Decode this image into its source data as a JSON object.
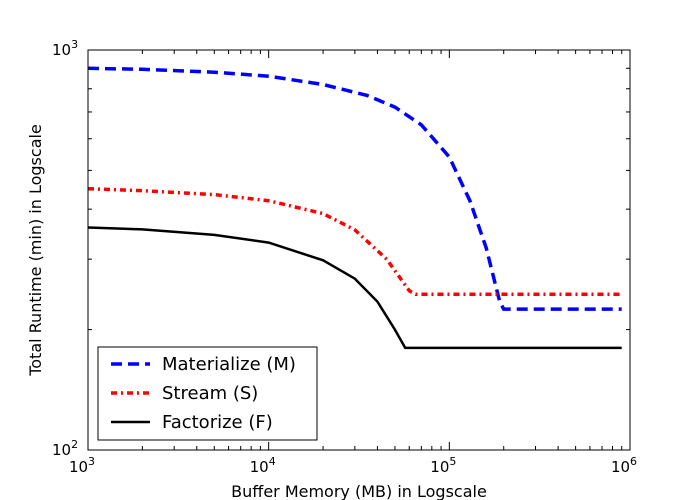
{
  "chart_data": {
    "type": "line",
    "title": "",
    "xlabel": "Buffer Memory (MB) in Logscale",
    "ylabel": "Total Runtime (min) in Logscale",
    "xscale": "log",
    "yscale": "log",
    "xlim": [
      1000,
      1000000
    ],
    "ylim": [
      100,
      1000
    ],
    "grid": false,
    "legend_position": "lower-left",
    "x_ticks": [
      {
        "base": "10",
        "exp": "3"
      },
      {
        "base": "10",
        "exp": "4"
      },
      {
        "base": "10",
        "exp": "5"
      },
      {
        "base": "10",
        "exp": "6"
      }
    ],
    "y_ticks": [
      {
        "base": "10",
        "exp": "2"
      },
      {
        "base": "10",
        "exp": "3"
      }
    ],
    "series": [
      {
        "name": "Materialize (M)",
        "color": "#0000ff",
        "style": "dashed",
        "x": [
          1000,
          2000,
          5000,
          10000,
          20000,
          35000,
          50000,
          70000,
          100000,
          130000,
          160000,
          190000,
          200000,
          400000,
          900000
        ],
        "y": [
          900,
          895,
          880,
          860,
          820,
          770,
          720,
          650,
          540,
          420,
          320,
          235,
          225,
          225,
          225
        ]
      },
      {
        "name": "Stream (S)",
        "color": "#ff0000",
        "style": "dashdot",
        "x": [
          1000,
          2000,
          5000,
          10000,
          20000,
          30000,
          45000,
          60000,
          65000,
          100000,
          300000,
          900000
        ],
        "y": [
          450,
          445,
          435,
          420,
          390,
          355,
          300,
          250,
          245,
          245,
          245,
          245
        ]
      },
      {
        "name": "Factorize (F)",
        "color": "#000000",
        "style": "solid",
        "x": [
          1000,
          2000,
          5000,
          10000,
          20000,
          30000,
          40000,
          50000,
          57000,
          100000,
          300000,
          900000
        ],
        "y": [
          360,
          356,
          345,
          330,
          298,
          268,
          235,
          200,
          180,
          180,
          180,
          180
        ]
      }
    ]
  }
}
